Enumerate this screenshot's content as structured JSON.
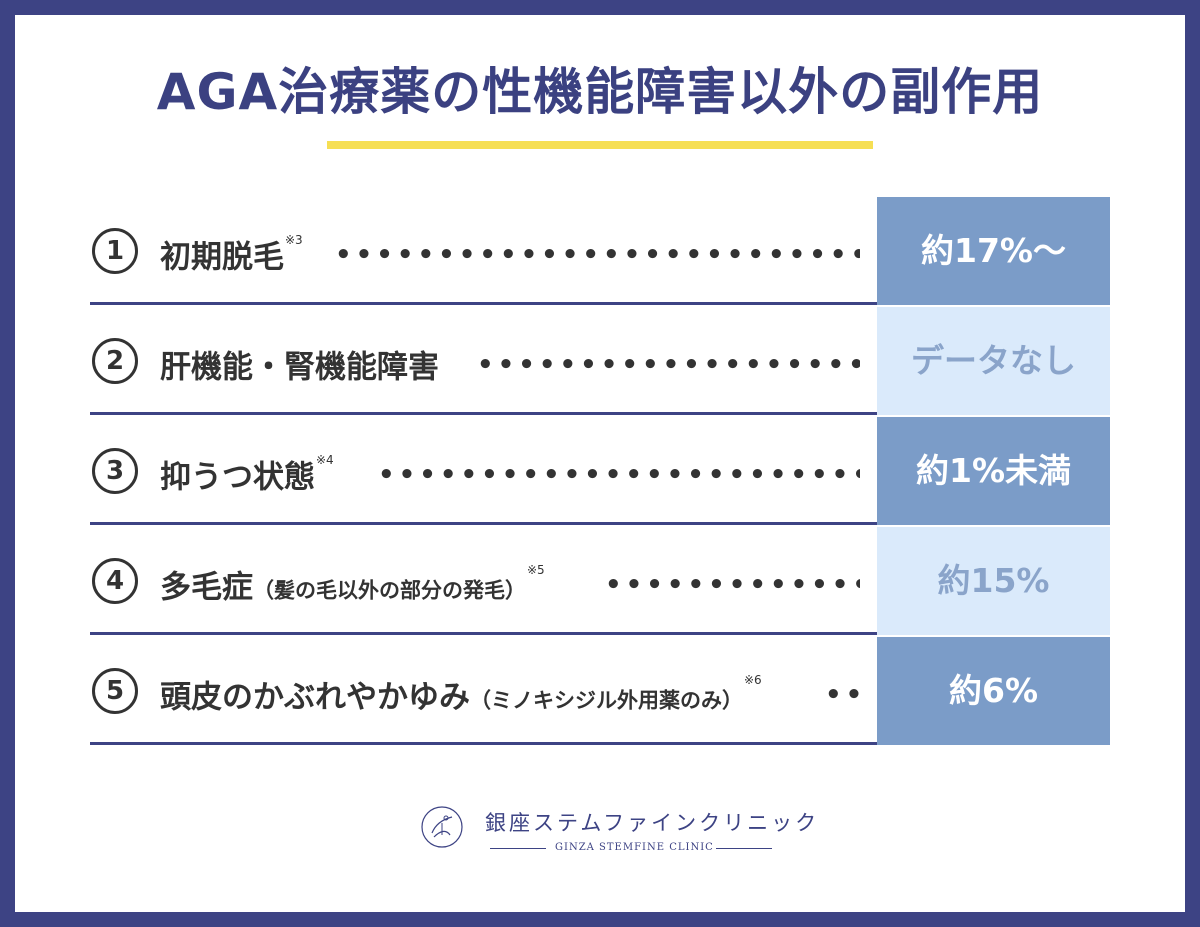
{
  "title": "AGA治療薬の性機能障害以外の副作用",
  "colors": {
    "border": "#3d4384",
    "title": "#3b4181",
    "accent_bar": "#f6df54",
    "value_dark": "#7b9cc8",
    "value_light": "#daeafb",
    "value_light_text": "#8aa4ca"
  },
  "rows": [
    {
      "num": "1",
      "label": "初期脱毛",
      "note": "",
      "ref": "※3",
      "value": "約17%〜",
      "style": "dark"
    },
    {
      "num": "2",
      "label": "肝機能・腎機能障害",
      "note": "",
      "ref": "",
      "value": "データなし",
      "style": "light"
    },
    {
      "num": "3",
      "label": "抑うつ状態",
      "note": "",
      "ref": "※4",
      "value": "約1%未満",
      "style": "dark"
    },
    {
      "num": "4",
      "label": "多毛症",
      "note": "（髪の毛以外の部分の発毛）",
      "ref": "※5",
      "value": "約15%",
      "style": "light"
    },
    {
      "num": "5",
      "label": "頭皮のかぶれやかゆみ",
      "note": "（ミノキシジル外用薬のみ）",
      "ref": "※6",
      "value": "約6%",
      "style": "dark"
    }
  ],
  "logo": {
    "icon": "clinic-logo-icon",
    "name_jp": "銀座ステムファインクリニック",
    "name_en": "GINZA STEMFINE CLINIC"
  }
}
